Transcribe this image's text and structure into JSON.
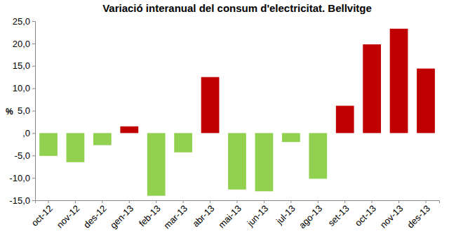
{
  "chart_data": {
    "type": "bar",
    "title": "Variació interanual del consum d'electricitat. Bellvitge",
    "ylabel": "%",
    "categories": [
      "oct-12",
      "nov-12",
      "des-12",
      "gen-13",
      "feb-13",
      "mar-13",
      "abr-13",
      "mai-13",
      "jun-13",
      "jul-13",
      "ago-13",
      "set-13",
      "oct-13",
      "nov-13",
      "des-13"
    ],
    "values": [
      -5.1,
      -6.5,
      -2.7,
      1.5,
      -14.0,
      -4.3,
      12.5,
      -12.6,
      -13.0,
      -2.0,
      -10.2,
      6.1,
      19.8,
      23.3,
      14.4
    ],
    "colors": [
      "#92d050",
      "#92d050",
      "#92d050",
      "#c00000",
      "#92d050",
      "#92d050",
      "#c00000",
      "#92d050",
      "#92d050",
      "#92d050",
      "#92d050",
      "#c00000",
      "#c00000",
      "#c00000",
      "#c00000"
    ],
    "ylim": [
      -15,
      25
    ],
    "yticks": [
      {
        "value": -15,
        "label": "-15,0"
      },
      {
        "value": -10,
        "label": "-10,0"
      },
      {
        "value": -5,
        "label": "-5,0"
      },
      {
        "value": 0,
        "label": ",0"
      },
      {
        "value": 5,
        "label": "5,0"
      },
      {
        "value": 10,
        "label": "10,0"
      },
      {
        "value": 15,
        "label": "15,0"
      },
      {
        "value": 20,
        "label": "20,0"
      },
      {
        "value": 25,
        "label": "25,0"
      }
    ],
    "grid": false
  }
}
